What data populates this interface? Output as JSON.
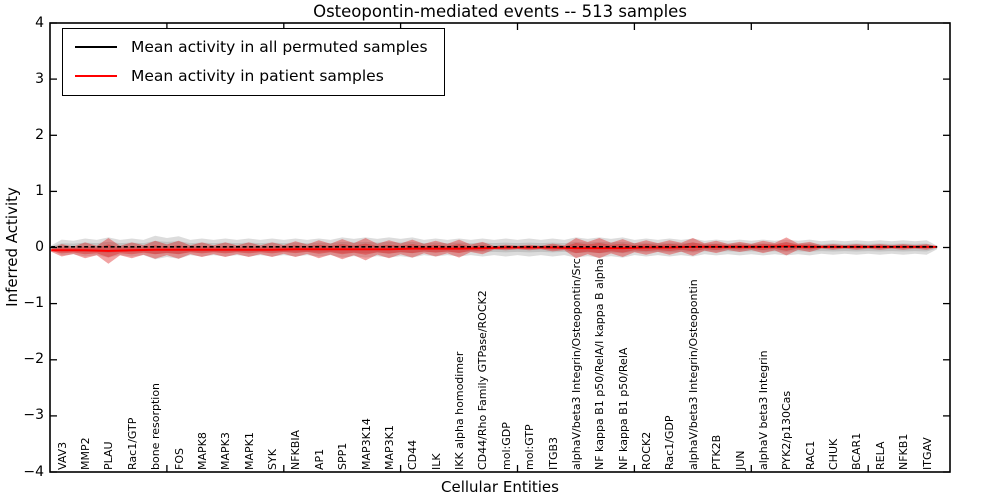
{
  "title": "Osteopontin-mediated events -- 513 samples",
  "chart_data": {
    "type": "area",
    "title": "Osteopontin-mediated events -- 513 samples",
    "xlabel": "Cellular Entities",
    "ylabel": "Inferred Activity",
    "ylim": [
      -4,
      4
    ],
    "ytick_labels": [
      "4",
      "3",
      "2",
      "1",
      "0",
      "−1",
      "−2",
      "−3",
      "−4"
    ],
    "ytick_values": [
      4,
      3,
      2,
      1,
      0,
      -1,
      -2,
      -3,
      -4
    ],
    "grid": false,
    "legend_position": "upper left",
    "categories": [
      "VAV3",
      "MMP2",
      "PLAU",
      "Rac1/GTP",
      "bone resorption",
      "FOS",
      "MAPK8",
      "MAPK3",
      "MAPK1",
      "SYK",
      "NFKBIA",
      "AP1",
      "SPP1",
      "MAP3K14",
      "MAP3K1",
      "CD44",
      "ILK",
      "IKK alpha homodimer",
      "CD44/Rho Family GTPase/ROCK2",
      "mol:GDP",
      "mol:GTP",
      "ITGB3",
      "alphaV/beta3 Integrin/Osteopontin/Src",
      "NF kappa B1 p50/RelA/I kappa B alpha",
      "NF kappa B1 p50/RelA",
      "ROCK2",
      "Rac1/GDP",
      "alphaV/beta3 Integrin/Osteopontin",
      "PTK2B",
      "JUN",
      "alphaV beta3 Integrin",
      "PYK2/p130Cas",
      "RAC1",
      "CHUK",
      "BCAR1",
      "RELA",
      "NFKB1",
      "ITGAV"
    ],
    "series": [
      {
        "name": "Mean activity in all permuted samples",
        "color": "#000000",
        "band_color": "#787878",
        "mean": [
          0,
          0,
          0,
          0,
          0,
          0,
          0,
          0,
          0,
          0,
          0,
          0,
          0,
          0,
          0,
          0,
          0,
          0,
          0,
          0,
          0,
          0,
          0,
          0,
          0,
          0,
          0,
          0,
          0,
          0,
          0,
          0,
          0,
          0,
          0,
          0,
          0,
          0
        ],
        "band_halfwidth": [
          0.14,
          0.16,
          0.18,
          0.16,
          0.21,
          0.2,
          0.16,
          0.16,
          0.16,
          0.16,
          0.16,
          0.16,
          0.18,
          0.18,
          0.18,
          0.18,
          0.16,
          0.16,
          0.16,
          0.16,
          0.16,
          0.16,
          0.18,
          0.18,
          0.18,
          0.16,
          0.16,
          0.16,
          0.14,
          0.14,
          0.14,
          0.14,
          0.14,
          0.13,
          0.13,
          0.13,
          0.13,
          0.13
        ]
      },
      {
        "name": "Mean activity in patient samples",
        "color": "#ff0000",
        "band_color": "#dd2222",
        "mean": [
          -0.05,
          -0.05,
          -0.06,
          -0.05,
          -0.04,
          -0.04,
          -0.04,
          -0.04,
          -0.04,
          -0.04,
          -0.03,
          -0.03,
          -0.03,
          -0.03,
          -0.03,
          -0.02,
          -0.02,
          -0.02,
          -0.01,
          0,
          0,
          0,
          -0.01,
          -0.01,
          -0.01,
          0,
          0,
          0.01,
          0.01,
          0.01,
          0.01,
          0.02,
          0.01,
          0.01,
          0.01,
          0.01,
          0.01,
          0.01
        ],
        "band_halfwidth": [
          0.11,
          0.14,
          0.23,
          0.14,
          0.16,
          0.16,
          0.13,
          0.13,
          0.13,
          0.13,
          0.14,
          0.16,
          0.18,
          0.2,
          0.16,
          0.16,
          0.14,
          0.16,
          0.11,
          0.05,
          0.05,
          0.07,
          0.18,
          0.18,
          0.16,
          0.13,
          0.13,
          0.16,
          0.11,
          0.09,
          0.11,
          0.16,
          0.09,
          0.05,
          0.05,
          0.05,
          0.05,
          0.05
        ]
      }
    ]
  },
  "legend": {
    "items": [
      {
        "label": "Mean activity in all permuted samples",
        "color": "#000000"
      },
      {
        "label": "Mean activity in patient samples",
        "color": "#ff0000"
      }
    ]
  }
}
